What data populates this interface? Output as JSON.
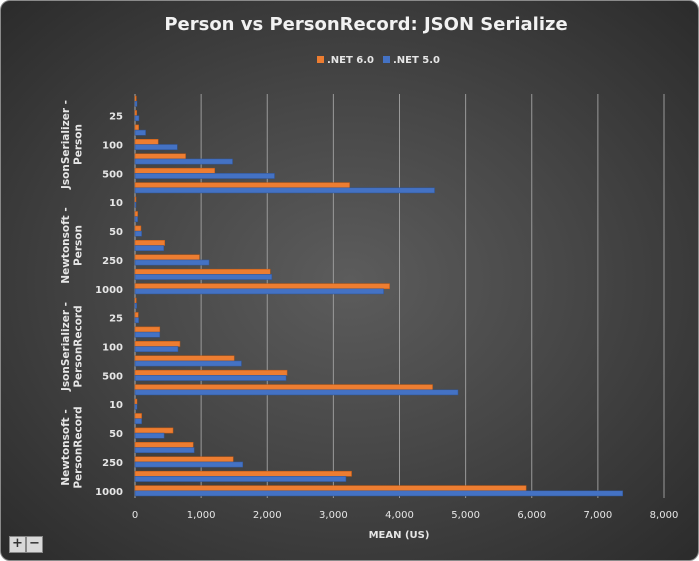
{
  "chart_data": {
    "type": "bar",
    "orientation": "horizontal",
    "title": "Person vs PersonRecord: JSON Serialize",
    "xlabel": "MEAN (US)",
    "ylabel": "",
    "xlim": [
      0,
      8000
    ],
    "xticks": [
      "0",
      "1,000",
      "2,000",
      "3,000",
      "4,000",
      "5,000",
      "6,000",
      "7,000",
      "8,000"
    ],
    "grid": true,
    "legend_position": "top",
    "categories": [
      "10",
      "25",
      "50",
      "100",
      "250",
      "500",
      "1000"
    ],
    "groups": [
      {
        "name": "JsonSerializer - Person",
        "shown_labels": [
          "25",
          "100",
          "500"
        ],
        "series": [
          {
            "name": ".NET 6.0",
            "values": [
              20,
              25,
              55,
              350,
              765,
              1205,
              3245
            ]
          },
          {
            "name": ".NET 5.0",
            "values": [
              30,
              60,
              160,
              640,
              1475,
              2110,
              4530
            ]
          }
        ]
      },
      {
        "name": "Newtonsoft - Person",
        "shown_labels": [
          "10",
          "50",
          "250",
          "1000"
        ],
        "series": [
          {
            "name": ".NET 6.0",
            "values": [
              15,
              40,
              90,
              450,
              975,
              2045,
              3850
            ]
          },
          {
            "name": ".NET 5.0",
            "values": [
              15,
              40,
              100,
              435,
              1120,
              2070,
              3760
            ]
          }
        ]
      },
      {
        "name": "JsonSerializer - PersonRecord",
        "shown_labels": [
          "25",
          "100",
          "500"
        ],
        "series": [
          {
            "name": ".NET 6.0",
            "values": [
              20,
              50,
              375,
              680,
              1500,
              2300,
              4500
            ]
          },
          {
            "name": ".NET 5.0",
            "values": [
              25,
              55,
              375,
              650,
              1610,
              2285,
              4885
            ]
          }
        ]
      },
      {
        "name": "Newtonsoft - PersonRecord",
        "shown_labels": [
          "10",
          "50",
          "250",
          "1000"
        ],
        "series": [
          {
            "name": ".NET 6.0",
            "values": [
              30,
              100,
              575,
              880,
              1485,
              3275,
              5915
            ]
          },
          {
            "name": ".NET 5.0",
            "values": [
              30,
              100,
              440,
              895,
              1630,
              3190,
              7375
            ]
          }
        ]
      }
    ],
    "legend": [
      ".NET 6.0",
      ".NET 5.0"
    ],
    "colors": {
      ".NET 6.0": "#ED7D31",
      ".NET 5.0": "#4472C4"
    }
  },
  "controls": {
    "zoom_in": "+",
    "zoom_out": "−"
  }
}
